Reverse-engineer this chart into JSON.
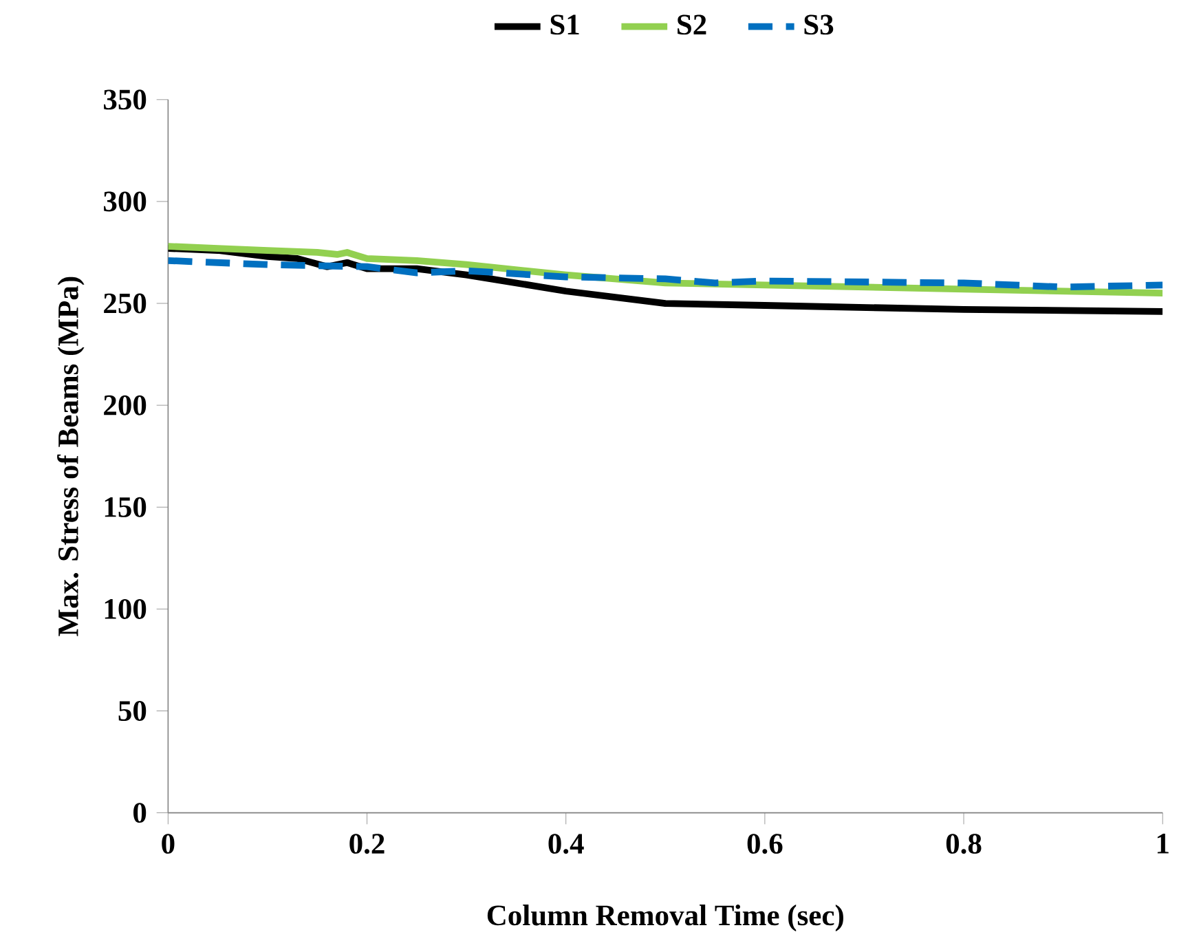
{
  "chart_data": {
    "type": "line",
    "xlabel": "Column Removal Time (sec)",
    "ylabel": "Max. Stress of Beams (MPa)",
    "xlim": [
      0,
      1
    ],
    "xticks": [
      0,
      0.2,
      0.4,
      0.6,
      0.8,
      1
    ],
    "ylim": [
      0,
      350
    ],
    "yticks": [
      0,
      50,
      100,
      150,
      200,
      250,
      300,
      350
    ],
    "legend": "top",
    "grid": false,
    "series": [
      {
        "name": "S1",
        "color": "#000000",
        "line_style": "solid",
        "x": [
          0,
          0.05,
          0.1,
          0.13,
          0.16,
          0.18,
          0.2,
          0.25,
          0.3,
          0.4,
          0.5,
          0.6,
          0.8,
          1.0
        ],
        "values": [
          277,
          276,
          273,
          272,
          268,
          270,
          267,
          267,
          264,
          256,
          250,
          249,
          247,
          246
        ]
      },
      {
        "name": "S2",
        "color": "#92d050",
        "line_style": "solid",
        "x": [
          0,
          0.05,
          0.1,
          0.15,
          0.17,
          0.18,
          0.2,
          0.25,
          0.3,
          0.4,
          0.5,
          0.6,
          0.8,
          1.0
        ],
        "values": [
          278,
          277,
          276,
          275,
          274,
          275,
          272,
          271,
          269,
          264,
          260,
          259,
          257,
          255
        ]
      },
      {
        "name": "S3",
        "color": "#0070c0",
        "line_style": "dashed",
        "x": [
          0,
          0.1,
          0.2,
          0.25,
          0.3,
          0.4,
          0.5,
          0.55,
          0.6,
          0.8,
          0.9,
          1.0
        ],
        "values": [
          271,
          269,
          268,
          265,
          266,
          263,
          262,
          260,
          261,
          260,
          258,
          259
        ]
      }
    ]
  }
}
